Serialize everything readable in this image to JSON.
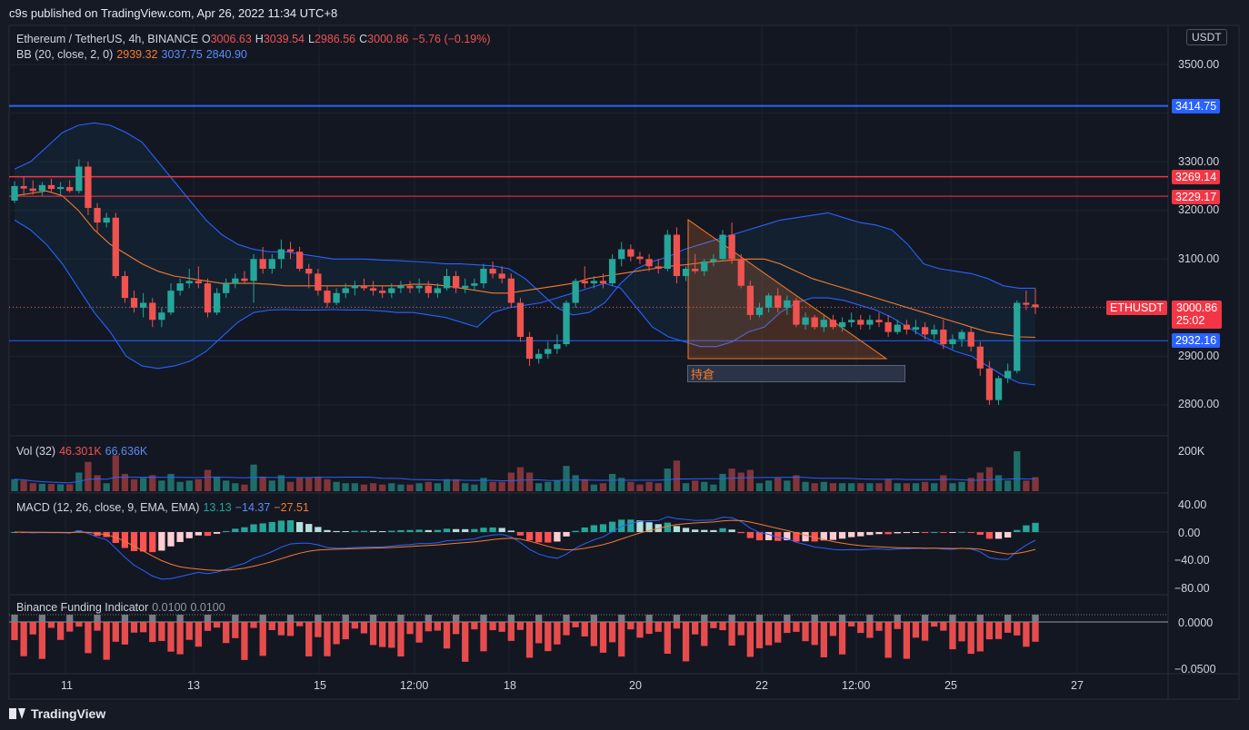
{
  "header": {
    "publish_text": "c9s published on TradingView.com, Apr 26, 2022 11:34 UTC+8"
  },
  "footer": {
    "brand": "TradingView"
  },
  "symbol": {
    "name": "Ethereum / TetherUS, 4h, BINANCE",
    "o_label": "O",
    "o": "3006.63",
    "h_label": "H",
    "h": "3039.54",
    "l_label": "L",
    "l": "2986.56",
    "c_label": "C",
    "c": "3000.86",
    "change": "−5.76 (−0.19%)"
  },
  "currency": "USDT",
  "indicators": {
    "bb": {
      "label": "BB (20, close, 2, 0)",
      "basis": "2939.32",
      "upper": "3037.75",
      "lower": "2840.90"
    },
    "vol": {
      "label": "Vol (32)",
      "value": "46.301K",
      "ma": "66.636K"
    },
    "macd": {
      "label": "MACD (12, 26, close, 9, EMA, EMA)",
      "hist": "13.13",
      "macd": "−14.37",
      "signal": "−27.51"
    },
    "funding": {
      "label": "Binance Funding Indicator",
      "v1": "0.0100",
      "v2": "0.0100"
    }
  },
  "price_axis": [
    "3500.00",
    "3300.00",
    "3200.00",
    "3100.00",
    "2900.00",
    "2800.00"
  ],
  "vol_axis": [
    "200K"
  ],
  "macd_axis": [
    "40.00",
    "0.00",
    "−40.00",
    "−80.00"
  ],
  "funding_axis": [
    "0.0000",
    "−0.0500"
  ],
  "time_axis": [
    "11",
    "13",
    "15",
    "12:00",
    "18",
    "20",
    "22",
    "12:00",
    "25",
    "27"
  ],
  "levels": {
    "blue_top": {
      "value": "3414.75",
      "color": "#2962ff"
    },
    "red_1": {
      "value": "3269.14",
      "color": "#f23645"
    },
    "red_2": {
      "value": "3229.17",
      "color": "#f23645"
    },
    "blue_low": {
      "value": "2932.16",
      "color": "#2962ff"
    }
  },
  "last_price": {
    "symbol": "ETHUSDT",
    "value": "3000.86",
    "countdown": "25:02"
  },
  "annotation": {
    "text": "持倉"
  },
  "colors": {
    "up": "#26a69a",
    "down": "#ef5350",
    "bb_basis": "#f57c2c",
    "bb_band": "#2962ff",
    "background": "#161a25"
  },
  "chart_data": {
    "type": "candlestick",
    "title": "Ethereum / TetherUS, 4h, BINANCE",
    "price_range": [
      2740,
      3600
    ],
    "candles": [
      {
        "o": 3220,
        "h": 3260,
        "l": 3215,
        "c": 3250
      },
      {
        "o": 3250,
        "h": 3270,
        "l": 3230,
        "c": 3245
      },
      {
        "o": 3245,
        "h": 3262,
        "l": 3232,
        "c": 3240
      },
      {
        "o": 3240,
        "h": 3258,
        "l": 3230,
        "c": 3252
      },
      {
        "o": 3252,
        "h": 3265,
        "l": 3238,
        "c": 3244
      },
      {
        "o": 3244,
        "h": 3258,
        "l": 3232,
        "c": 3248
      },
      {
        "o": 3248,
        "h": 3262,
        "l": 3236,
        "c": 3240
      },
      {
        "o": 3240,
        "h": 3305,
        "l": 3235,
        "c": 3290
      },
      {
        "o": 3290,
        "h": 3300,
        "l": 3190,
        "c": 3205
      },
      {
        "o": 3205,
        "h": 3215,
        "l": 3155,
        "c": 3175
      },
      {
        "o": 3175,
        "h": 3195,
        "l": 3165,
        "c": 3185
      },
      {
        "o": 3185,
        "h": 3195,
        "l": 3060,
        "c": 3065
      },
      {
        "o": 3065,
        "h": 3075,
        "l": 3010,
        "c": 3020
      },
      {
        "o": 3020,
        "h": 3035,
        "l": 2990,
        "c": 3000
      },
      {
        "o": 3000,
        "h": 3030,
        "l": 2980,
        "c": 3010
      },
      {
        "o": 3010,
        "h": 3020,
        "l": 2960,
        "c": 2975
      },
      {
        "o": 2975,
        "h": 3000,
        "l": 2960,
        "c": 2990
      },
      {
        "o": 2990,
        "h": 3050,
        "l": 2985,
        "c": 3035
      },
      {
        "o": 3035,
        "h": 3060,
        "l": 3025,
        "c": 3050
      },
      {
        "o": 3050,
        "h": 3080,
        "l": 3040,
        "c": 3055
      },
      {
        "o": 3055,
        "h": 3085,
        "l": 3040,
        "c": 3050
      },
      {
        "o": 3050,
        "h": 3060,
        "l": 2980,
        "c": 2990
      },
      {
        "o": 2990,
        "h": 3040,
        "l": 2985,
        "c": 3030
      },
      {
        "o": 3030,
        "h": 3060,
        "l": 3020,
        "c": 3050
      },
      {
        "o": 3050,
        "h": 3070,
        "l": 3040,
        "c": 3060
      },
      {
        "o": 3060,
        "h": 3075,
        "l": 3050,
        "c": 3055
      },
      {
        "o": 3055,
        "h": 3110,
        "l": 3010,
        "c": 3100
      },
      {
        "o": 3100,
        "h": 3125,
        "l": 3070,
        "c": 3080
      },
      {
        "o": 3080,
        "h": 3110,
        "l": 3070,
        "c": 3100
      },
      {
        "o": 3100,
        "h": 3140,
        "l": 3080,
        "c": 3120
      },
      {
        "o": 3120,
        "h": 3135,
        "l": 3100,
        "c": 3115
      },
      {
        "o": 3115,
        "h": 3125,
        "l": 3075,
        "c": 3080
      },
      {
        "o": 3080,
        "h": 3090,
        "l": 3040,
        "c": 3070
      },
      {
        "o": 3070,
        "h": 3080,
        "l": 3025,
        "c": 3035
      },
      {
        "o": 3035,
        "h": 3045,
        "l": 3000,
        "c": 3010
      },
      {
        "o": 3010,
        "h": 3040,
        "l": 3005,
        "c": 3030
      },
      {
        "o": 3030,
        "h": 3050,
        "l": 3020,
        "c": 3040
      },
      {
        "o": 3040,
        "h": 3055,
        "l": 3025,
        "c": 3045
      },
      {
        "o": 3045,
        "h": 3060,
        "l": 3035,
        "c": 3040
      },
      {
        "o": 3040,
        "h": 3055,
        "l": 3025,
        "c": 3035
      },
      {
        "o": 3035,
        "h": 3045,
        "l": 3020,
        "c": 3030
      },
      {
        "o": 3030,
        "h": 3050,
        "l": 3020,
        "c": 3040
      },
      {
        "o": 3040,
        "h": 3055,
        "l": 3030,
        "c": 3045
      },
      {
        "o": 3045,
        "h": 3055,
        "l": 3030,
        "c": 3040
      },
      {
        "o": 3040,
        "h": 3060,
        "l": 3030,
        "c": 3045
      },
      {
        "o": 3045,
        "h": 3055,
        "l": 3020,
        "c": 3030
      },
      {
        "o": 3030,
        "h": 3050,
        "l": 3020,
        "c": 3040
      },
      {
        "o": 3040,
        "h": 3080,
        "l": 3035,
        "c": 3065
      },
      {
        "o": 3065,
        "h": 3075,
        "l": 3030,
        "c": 3040
      },
      {
        "o": 3040,
        "h": 3060,
        "l": 3030,
        "c": 3045
      },
      {
        "o": 3045,
        "h": 3060,
        "l": 3035,
        "c": 3050
      },
      {
        "o": 3050,
        "h": 3090,
        "l": 3040,
        "c": 3080
      },
      {
        "o": 3080,
        "h": 3095,
        "l": 3060,
        "c": 3070
      },
      {
        "o": 3070,
        "h": 3085,
        "l": 3050,
        "c": 3060
      },
      {
        "o": 3060,
        "h": 3070,
        "l": 3000,
        "c": 3010
      },
      {
        "o": 3010,
        "h": 3020,
        "l": 2930,
        "c": 2940
      },
      {
        "o": 2940,
        "h": 2950,
        "l": 2880,
        "c": 2895
      },
      {
        "o": 2895,
        "h": 2915,
        "l": 2885,
        "c": 2905
      },
      {
        "o": 2905,
        "h": 2930,
        "l": 2895,
        "c": 2915
      },
      {
        "o": 2915,
        "h": 2945,
        "l": 2905,
        "c": 2925
      },
      {
        "o": 2925,
        "h": 3015,
        "l": 2920,
        "c": 3010
      },
      {
        "o": 3010,
        "h": 3060,
        "l": 3000,
        "c": 3055
      },
      {
        "o": 3055,
        "h": 3085,
        "l": 3040,
        "c": 3050
      },
      {
        "o": 3050,
        "h": 3065,
        "l": 3040,
        "c": 3055
      },
      {
        "o": 3055,
        "h": 3070,
        "l": 3040,
        "c": 3050
      },
      {
        "o": 3050,
        "h": 3110,
        "l": 3045,
        "c": 3100
      },
      {
        "o": 3100,
        "h": 3135,
        "l": 3085,
        "c": 3120
      },
      {
        "o": 3120,
        "h": 3130,
        "l": 3095,
        "c": 3105
      },
      {
        "o": 3105,
        "h": 3115,
        "l": 3090,
        "c": 3100
      },
      {
        "o": 3100,
        "h": 3110,
        "l": 3075,
        "c": 3085
      },
      {
        "o": 3085,
        "h": 3100,
        "l": 3070,
        "c": 3080
      },
      {
        "o": 3080,
        "h": 3160,
        "l": 3075,
        "c": 3150
      },
      {
        "o": 3150,
        "h": 3165,
        "l": 3050,
        "c": 3065
      },
      {
        "o": 3065,
        "h": 3085,
        "l": 3055,
        "c": 3080
      },
      {
        "o": 3080,
        "h": 3110,
        "l": 3070,
        "c": 3075
      },
      {
        "o": 3075,
        "h": 3100,
        "l": 3065,
        "c": 3095
      },
      {
        "o": 3095,
        "h": 3110,
        "l": 3085,
        "c": 3100
      },
      {
        "o": 3100,
        "h": 3160,
        "l": 3095,
        "c": 3150
      },
      {
        "o": 3150,
        "h": 3175,
        "l": 3090,
        "c": 3100
      },
      {
        "o": 3100,
        "h": 3110,
        "l": 3040,
        "c": 3045
      },
      {
        "o": 3045,
        "h": 3055,
        "l": 2975,
        "c": 2985
      },
      {
        "o": 2985,
        "h": 3010,
        "l": 2980,
        "c": 3000
      },
      {
        "o": 3000,
        "h": 3030,
        "l": 2990,
        "c": 3025
      },
      {
        "o": 3025,
        "h": 3040,
        "l": 2990,
        "c": 3000
      },
      {
        "o": 3000,
        "h": 3025,
        "l": 2985,
        "c": 3015
      },
      {
        "o": 3015,
        "h": 3020,
        "l": 2960,
        "c": 2965
      },
      {
        "o": 2965,
        "h": 2990,
        "l": 2955,
        "c": 2980
      },
      {
        "o": 2980,
        "h": 2985,
        "l": 2955,
        "c": 2960
      },
      {
        "o": 2960,
        "h": 2985,
        "l": 2950,
        "c": 2975
      },
      {
        "o": 2975,
        "h": 2985,
        "l": 2955,
        "c": 2960
      },
      {
        "o": 2960,
        "h": 2980,
        "l": 2950,
        "c": 2970
      },
      {
        "o": 2970,
        "h": 2990,
        "l": 2960,
        "c": 2975
      },
      {
        "o": 2975,
        "h": 2985,
        "l": 2955,
        "c": 2965
      },
      {
        "o": 2965,
        "h": 2985,
        "l": 2955,
        "c": 2975
      },
      {
        "o": 2975,
        "h": 2990,
        "l": 2960,
        "c": 2970
      },
      {
        "o": 2970,
        "h": 2985,
        "l": 2940,
        "c": 2950
      },
      {
        "o": 2950,
        "h": 2975,
        "l": 2945,
        "c": 2965
      },
      {
        "o": 2965,
        "h": 2975,
        "l": 2945,
        "c": 2955
      },
      {
        "o": 2955,
        "h": 2975,
        "l": 2945,
        "c": 2960
      },
      {
        "o": 2960,
        "h": 2970,
        "l": 2935,
        "c": 2945
      },
      {
        "o": 2945,
        "h": 2965,
        "l": 2935,
        "c": 2955
      },
      {
        "o": 2955,
        "h": 2975,
        "l": 2915,
        "c": 2925
      },
      {
        "o": 2925,
        "h": 2945,
        "l": 2915,
        "c": 2935
      },
      {
        "o": 2935,
        "h": 2955,
        "l": 2920,
        "c": 2950
      },
      {
        "o": 2950,
        "h": 2960,
        "l": 2910,
        "c": 2920
      },
      {
        "o": 2920,
        "h": 2930,
        "l": 2860,
        "c": 2875
      },
      {
        "o": 2875,
        "h": 2890,
        "l": 2800,
        "c": 2810
      },
      {
        "o": 2810,
        "h": 2860,
        "l": 2800,
        "c": 2855
      },
      {
        "o": 2855,
        "h": 2885,
        "l": 2845,
        "c": 2870
      },
      {
        "o": 2870,
        "h": 3015,
        "l": 2865,
        "c": 3010
      },
      {
        "o": 3010,
        "h": 3035,
        "l": 2995,
        "c": 3006
      },
      {
        "o": 3006.63,
        "h": 3039.54,
        "l": 2986.56,
        "c": 3000.86
      }
    ],
    "bb_upper": [
      3285,
      3300,
      3330,
      3360,
      3375,
      3380,
      3375,
      3360,
      3340,
      3300,
      3260,
      3220,
      3180,
      3150,
      3130,
      3120,
      3115,
      3115,
      3110,
      3105,
      3100,
      3100,
      3100,
      3098,
      3097,
      3095,
      3093,
      3090,
      3090,
      3088,
      3086,
      3080,
      3060,
      3030,
      3000,
      2985,
      2990,
      3010,
      3050,
      3080,
      3095,
      3105,
      3120,
      3130,
      3140,
      3150,
      3160,
      3170,
      3180,
      3185,
      3190,
      3195,
      3185,
      3175,
      3170,
      3160,
      3130,
      3090,
      3080,
      3075,
      3070,
      3060,
      3045,
      3040,
      3040
    ],
    "bb_basis": [
      3230,
      3235,
      3240,
      3230,
      3200,
      3160,
      3130,
      3110,
      3090,
      3075,
      3065,
      3060,
      3055,
      3050,
      3050,
      3050,
      3048,
      3045,
      3045,
      3045,
      3045,
      3045,
      3045,
      3045,
      3045,
      3048,
      3048,
      3045,
      3040,
      3035,
      3030,
      3030,
      3035,
      3040,
      3045,
      3050,
      3060,
      3065,
      3070,
      3075,
      3080,
      3085,
      3088,
      3092,
      3095,
      3098,
      3100,
      3100,
      3090,
      3075,
      3060,
      3050,
      3040,
      3030,
      3020,
      3010,
      3000,
      2990,
      2980,
      2970,
      2960,
      2950,
      2945,
      2940,
      2939
    ],
    "bb_lower": [
      3180,
      3160,
      3130,
      3090,
      3040,
      2990,
      2950,
      2900,
      2880,
      2875,
      2880,
      2890,
      2910,
      2940,
      2970,
      2990,
      2995,
      2996,
      2995,
      2995,
      2996,
      2995,
      2995,
      2993,
      2990,
      2990,
      2985,
      2980,
      2970,
      2960,
      2990,
      3000,
      3005,
      3010,
      3020,
      3030,
      3040,
      3050,
      3040,
      3000,
      2960,
      2940,
      2930,
      2920,
      2920,
      2930,
      2950,
      2960,
      2990,
      3010,
      3020,
      3020,
      3015,
      3005,
      2995,
      2980,
      2960,
      2940,
      2925,
      2910,
      2900,
      2880,
      2860,
      2845,
      2841
    ]
  }
}
